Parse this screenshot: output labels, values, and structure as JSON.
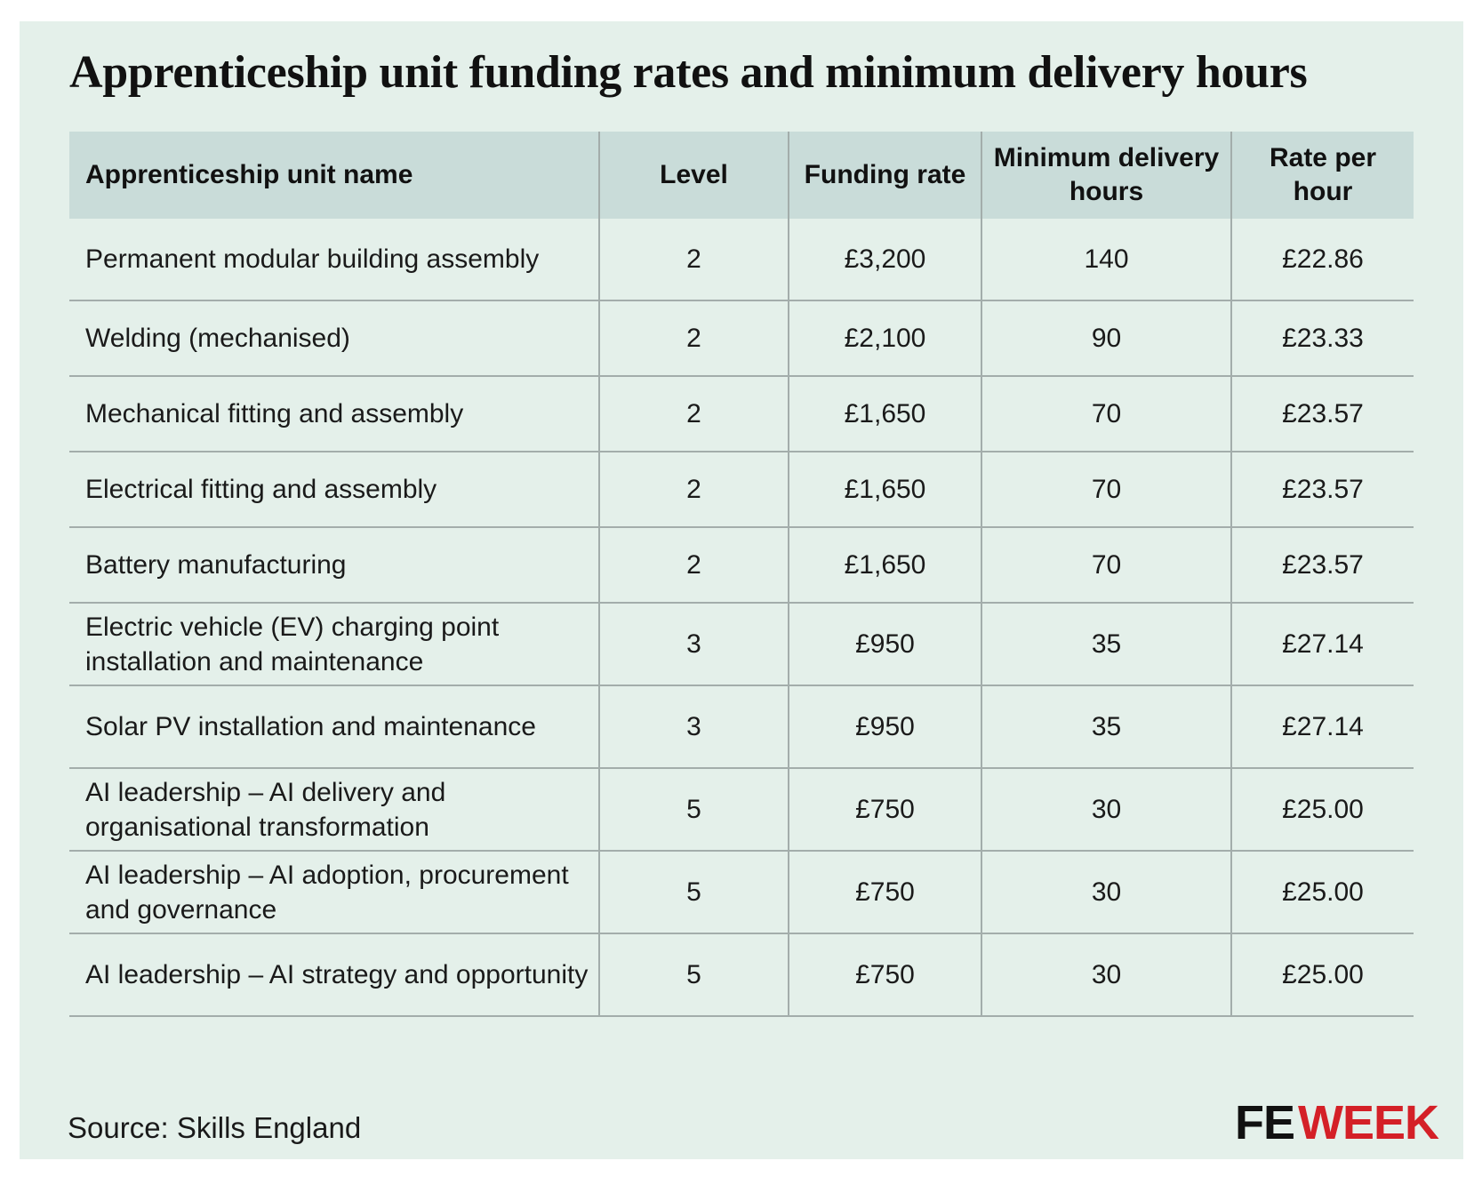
{
  "chart_data": {
    "type": "table",
    "title": "Apprenticeship unit funding rates and minimum delivery hours",
    "columns": [
      "Apprenticeship unit name",
      "Level",
      "Funding rate",
      "Minimum delivery hours",
      "Rate per hour"
    ],
    "rows": [
      [
        "Permanent modular building assembly",
        "2",
        "£3,200",
        "140",
        "£22.86"
      ],
      [
        "Welding (mechanised)",
        "2",
        "£2,100",
        "90",
        "£23.33"
      ],
      [
        "Mechanical fitting and assembly",
        "2",
        "£1,650",
        "70",
        "£23.57"
      ],
      [
        "Electrical fitting and assembly",
        "2",
        "£1,650",
        "70",
        "£23.57"
      ],
      [
        "Battery manufacturing",
        "2",
        "£1,650",
        "70",
        "£23.57"
      ],
      [
        "Electric vehicle (EV) charging point installation and maintenance",
        "3",
        "£950",
        "35",
        "£27.14"
      ],
      [
        "Solar PV installation and maintenance",
        "3",
        "£950",
        "35",
        "£27.14"
      ],
      [
        "AI leadership – AI delivery and organisational transformation",
        "5",
        "£750",
        "30",
        "£25.00"
      ],
      [
        "AI leadership – AI adoption, procurement and governance",
        "5",
        "£750",
        "30",
        "£25.00"
      ],
      [
        "AI leadership – AI strategy and opportunity",
        "5",
        "£750",
        "30",
        "£25.00"
      ]
    ],
    "source": "Source: Skills England"
  },
  "brand": {
    "logo_fe": "FE",
    "logo_week": "WEEK",
    "logo_fe_color": "#111111",
    "logo_week_color": "#d42027"
  },
  "colors": {
    "background": "#e4f0ea",
    "header_background": "#c9dcd9",
    "rule": "#a3adab"
  }
}
